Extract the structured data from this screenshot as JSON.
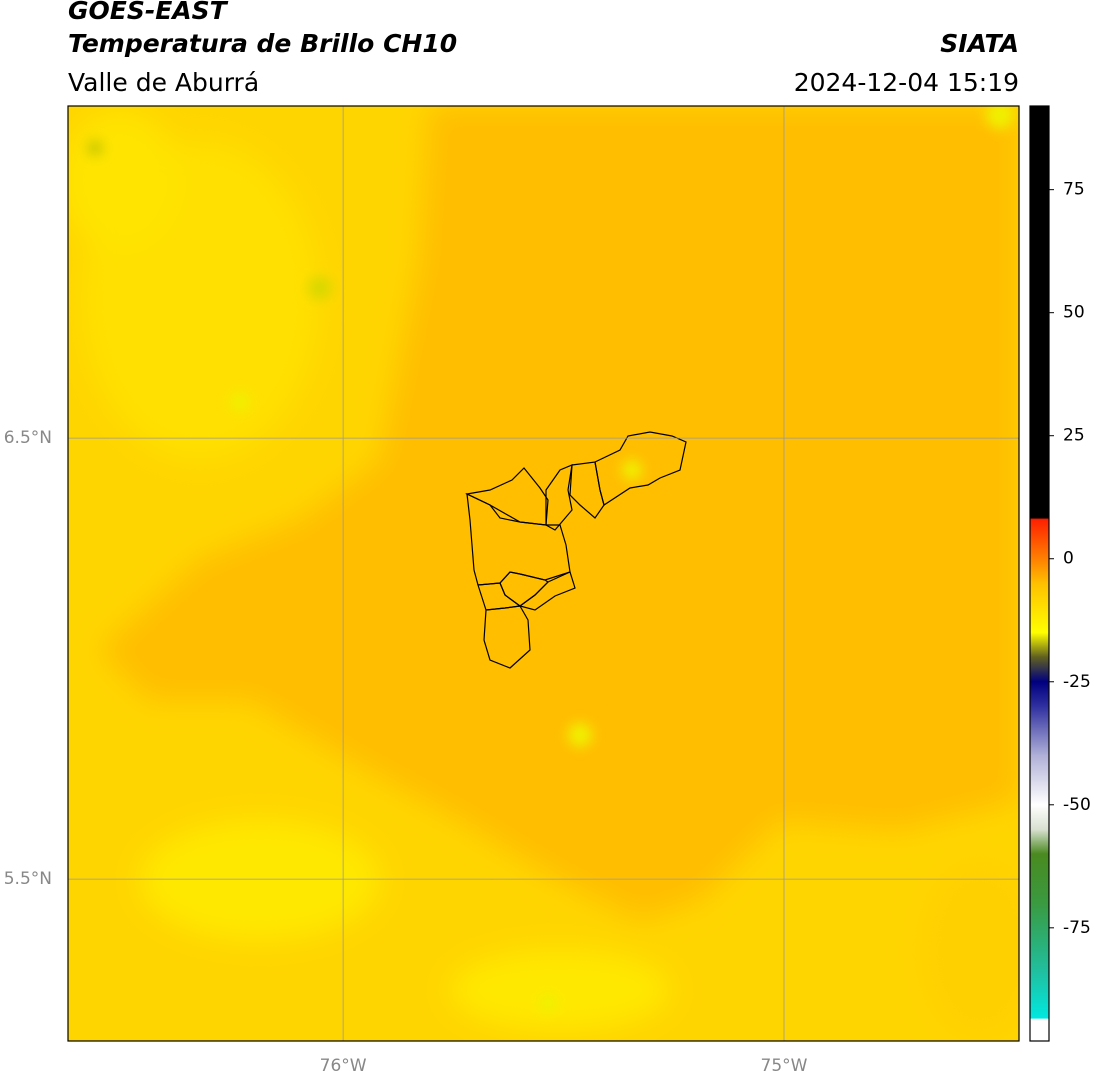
{
  "header": {
    "title": "GOES-EAST",
    "subtitle": "Temperatura de Brillo CH10",
    "region": "Valle de Aburrá",
    "source": "SIATA",
    "datetime": "2024-12-04 15:19"
  },
  "map": {
    "xlim": [
      -76.624,
      -74.467
    ],
    "ylim": [
      5.133,
      7.253
    ],
    "xticks": [
      {
        "value": -76,
        "label": "76°W"
      },
      {
        "value": -75,
        "label": "75°W"
      }
    ],
    "yticks": [
      {
        "value": 6.5,
        "label": "6.5°N"
      },
      {
        "value": 5.5,
        "label": "5.5°N"
      }
    ],
    "grid": true
  },
  "colorbar": {
    "clim": [
      -98,
      92
    ],
    "ticks": [
      75,
      50,
      25,
      0,
      -25,
      -50,
      -75
    ],
    "colormap": [
      {
        "value": -98,
        "color": "#ffffff"
      },
      {
        "value": -93.5,
        "color": "#ffffff"
      },
      {
        "value": -93.4,
        "color": "#00e8e0"
      },
      {
        "value": -84,
        "color": "#20c0a0"
      },
      {
        "value": -70,
        "color": "#3a9a40"
      },
      {
        "value": -60,
        "color": "#4a8a20"
      },
      {
        "value": -55,
        "color": "#d8e0d0"
      },
      {
        "value": -50,
        "color": "#ffffff"
      },
      {
        "value": -40,
        "color": "#b0b0d8"
      },
      {
        "value": -30,
        "color": "#3030a0"
      },
      {
        "value": -25,
        "color": "#000080"
      },
      {
        "value": -20,
        "color": "#606020"
      },
      {
        "value": -15,
        "color": "#ffff00"
      },
      {
        "value": -5,
        "color": "#ffc000"
      },
      {
        "value": 0,
        "color": "#ff8000"
      },
      {
        "value": 8,
        "color": "#ff2000"
      },
      {
        "value": 8.3,
        "color": "#000000"
      },
      {
        "value": 92,
        "color": "#000000"
      }
    ]
  }
}
